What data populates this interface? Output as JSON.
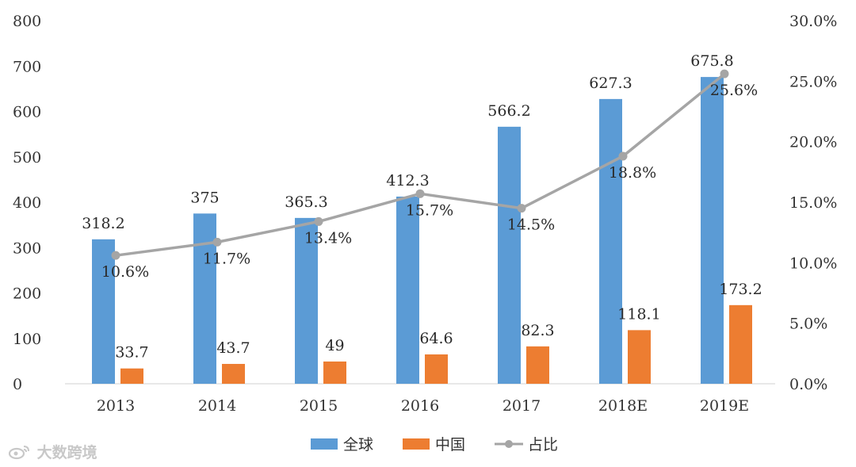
{
  "chart_data": {
    "type": "bar",
    "categories": [
      "2013",
      "2014",
      "2015",
      "2016",
      "2017",
      "2018E",
      "2019E"
    ],
    "series": [
      {
        "name": "全球",
        "type": "bar",
        "axis": "left",
        "color": "#5b9bd5",
        "values": [
          318.2,
          375,
          365.3,
          412.3,
          566.2,
          627.3,
          675.8
        ],
        "labels": [
          "318.2",
          "375",
          "365.3",
          "412.3",
          "566.2",
          "627.3",
          "675.8"
        ]
      },
      {
        "name": "中国",
        "type": "bar",
        "axis": "left",
        "color": "#ed7d31",
        "values": [
          33.7,
          43.7,
          49,
          64.6,
          82.3,
          118.1,
          173.2
        ],
        "labels": [
          "33.7",
          "43.7",
          "49",
          "64.6",
          "82.3",
          "118.1",
          "173.2"
        ]
      },
      {
        "name": "占比",
        "type": "line",
        "axis": "right",
        "color": "#a5a5a5",
        "values": [
          10.6,
          11.7,
          13.4,
          15.7,
          14.5,
          18.8,
          25.6
        ],
        "labels": [
          "10.6%",
          "11.7%",
          "13.4%",
          "15.7%",
          "14.5%",
          "18.8%",
          "25.6%"
        ]
      }
    ],
    "y_left": {
      "lim": [
        0,
        800
      ],
      "ticks": [
        "0",
        "100",
        "200",
        "300",
        "400",
        "500",
        "600",
        "700",
        "800"
      ]
    },
    "y_right": {
      "lim": [
        0,
        30
      ],
      "ticks": [
        "0.0%",
        "5.0%",
        "10.0%",
        "15.0%",
        "20.0%",
        "25.0%",
        "30.0%"
      ]
    },
    "legend_position": "bottom",
    "grid": false
  },
  "watermark": {
    "text": "大数跨境"
  }
}
